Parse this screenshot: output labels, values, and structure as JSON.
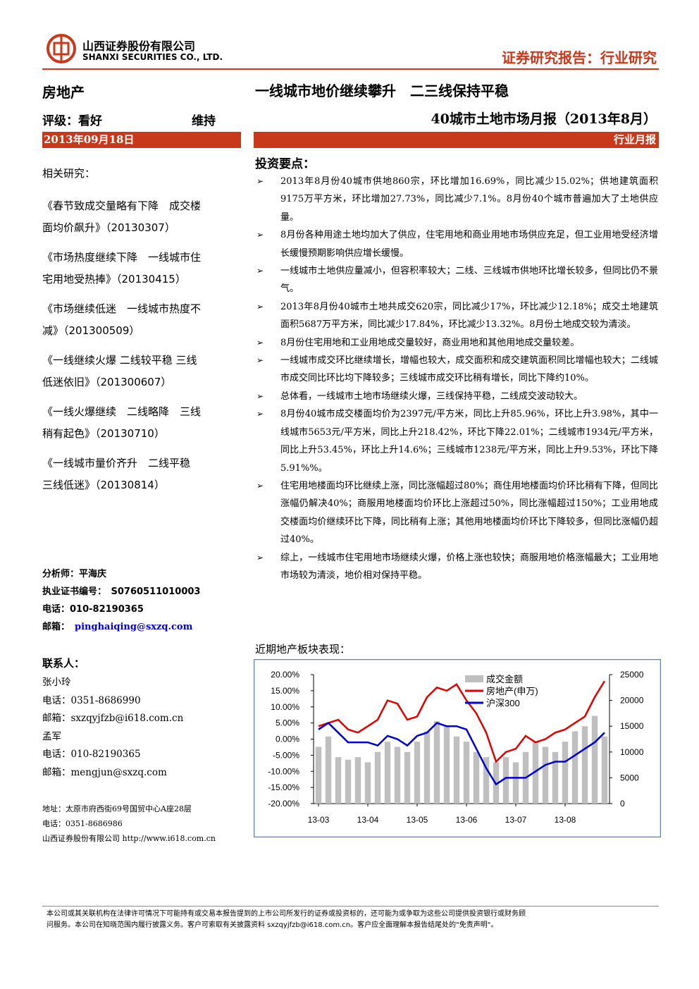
{
  "header": {
    "company_cn": "山西证券股份有限公司",
    "company_en": "SHANXI SECURITIES CO., LTD.",
    "report_type": "证券研究报告：行业研究"
  },
  "summary": {
    "sector": "房地产",
    "rating": "评级：看好",
    "rating_change": "维持",
    "date": "2013年09月18日",
    "title": "一线城市地价继续攀升　二三线保持平稳",
    "subtitle": "40城市土地市场月报（2013年8月）",
    "tag": "行业月报"
  },
  "sidebar": {
    "related_title": "相关研究：",
    "related": [
      [
        "《春节致成交量略有下降　成交楼",
        "面均价飙升》（20130307）"
      ],
      [
        "《市场热度继续下降　一线城市住",
        "宅用地受热捧》（20130415）"
      ],
      [
        "《市场继续低迷　一线城市热度不",
        "减》（201300509）"
      ],
      [
        "《一线继续火爆 二线较平稳 三线",
        "低迷依旧》（201300607）"
      ],
      [
        "《一线火爆继续　二线略降　三线",
        "稍有起色》（20130710）"
      ],
      [
        "《一线城市量价齐升　二线平稳",
        "三线低迷》（20130814）"
      ]
    ],
    "analyst": [
      "分析师：平海庆",
      "执业证书编号：　S0760511010003",
      "电话：010-82190365",
      "邮箱："
    ],
    "analyst_email": "pinghaiqing@sxzq.com",
    "contacts_title": "联系人：",
    "contacts": [
      "张小玲",
      "电话：0351-8686990",
      "邮箱：sxzqyjfzb@i618.com.cn",
      "孟军",
      "电话：010-82190365",
      "邮箱：mengjun@sxzq.com"
    ],
    "address": [
      "地址：太原市府西街69号国贸中心A座28层",
      "电话：0351-8686986",
      "山西证券股份有限公司 http://www.i618.com.cn"
    ]
  },
  "main": {
    "points_title": "投资要点：",
    "points": [
      "2013年8月份40城市供地860宗，环比增加16.69%，同比减少15.02%；供地建筑面积9175万平方米，环比增加27.73%，同比减少7.1%。8月份40个城市普遍加大了土地供应量。",
      "8月份各种用途土地均加大了供应，住宅用地和商业用地市场供应充足，但工业用地受经济增长缓慢预期影响供应增长缓慢。",
      "一线城市土地供应量减小，但容积率较大；二线、三线城市供地环比增长较多，但同比仍不景气。",
      "2013年8月份40城市土地共成交620宗，同比减少17%，环比减少12.18%；成交土地建筑面积5687万平方米，同比减少17.84%，环比减少13.32%。8月份土地成交较为清淡。",
      "8月份住宅用地和工业用地成交量较好，商业用地和其他用地成交量较差。",
      "一线城市成交环比继续增长，增幅也较大，成交面积和成交建筑面积同比增幅也较大；二线城市成交同比环比均下降较多；三线城市成交环比稍有增长，同比下降约10%。",
      "总体看，一线城市土地市场继续火爆，三线保持平稳，二线成交波动较大。",
      "8月份40城市成交楼面均价为2397元/平方米，同比上升85.96%，环比上升3.98%，其中一线城市5653元/平方米，同比上升218.42%，环比下降22.01%；二线城市1934元/平方米，同比上升53.45%，环比上升14.6%；三线城市1238元/平方米，同比上升9.53%，环比下降5.91%%。",
      "住宅用地楼面均环比继续上涨，同比涨幅超过80%；商住用地楼面均价环比稍有下降，但同比涨幅仍解决40%；商服用地楼面均价环比上涨超过50%，同比涨幅超过150%；工业用地成交楼面均价继续环比下降，同比稍有上涨；其他用地楼面均价环比下降较多，但同比涨幅仍超过40%。",
      "综上，一线城市住宅用地市场继续火爆，价格上涨也较快；商服用地价格涨幅最大；工业用地市场较为清淡，地价相对保持平稳。"
    ],
    "chart_title": "近期地产板块表现："
  },
  "chart_data": {
    "type": "bar-line",
    "categories": [
      "13-03",
      null,
      null,
      null,
      null,
      "13-04",
      null,
      null,
      null,
      null,
      "13-05",
      null,
      null,
      null,
      null,
      "13-06",
      null,
      null,
      null,
      null,
      "13-07",
      null,
      null,
      null,
      null,
      "13-08",
      null,
      null,
      null,
      null
    ],
    "series": [
      {
        "name": "成交金额",
        "type": "bar",
        "axis": "y2",
        "color": "#bfbfbf",
        "values": [
          11000,
          13000,
          9000,
          8500,
          9000,
          8000,
          10000,
          12000,
          11000,
          10000,
          12000,
          14000,
          16000,
          15000,
          13000,
          12000,
          10000,
          9000,
          8000,
          9000,
          8000,
          10000,
          12000,
          11000,
          10000,
          12000,
          14000,
          15000,
          17000,
          13000
        ]
      },
      {
        "name": "房地产(申万)",
        "type": "line",
        "color": "#e00000",
        "values": [
          4,
          5,
          6,
          3,
          2,
          4,
          6,
          12,
          11,
          6,
          7,
          13,
          16,
          15,
          17,
          12,
          8,
          2,
          -7,
          -4,
          -3,
          1,
          -1,
          0,
          2,
          3,
          5,
          7,
          13,
          18
        ]
      },
      {
        "name": "沪深300",
        "type": "line",
        "color": "#0000cc",
        "values": [
          3,
          5,
          2,
          -1,
          -1,
          -1,
          -2,
          1,
          0,
          -2,
          1,
          2,
          5,
          4,
          4,
          3,
          -3,
          -9,
          -14,
          -12,
          -12,
          -12,
          -10,
          -8,
          -7,
          -7,
          -5,
          -3,
          -1,
          2
        ]
      }
    ],
    "ylim": [
      -20,
      20
    ],
    "yticks": [
      {
        "value": -20,
        "label": "-20.00%"
      },
      {
        "value": -15,
        "label": "-15.00%"
      },
      {
        "value": -10,
        "label": "-10.00%"
      },
      {
        "value": -5,
        "label": "-5.00%"
      },
      {
        "value": 0,
        "label": "0.00%"
      },
      {
        "value": 5,
        "label": "5.00%"
      },
      {
        "value": 10,
        "label": "10.00%"
      },
      {
        "value": 15,
        "label": "15.00%"
      },
      {
        "value": 20,
        "label": "20.00%"
      }
    ],
    "y2lim": [
      0,
      25000
    ],
    "y2ticks": [
      0,
      5000,
      10000,
      15000,
      20000,
      25000
    ],
    "legend": "upper-center"
  },
  "footer": {
    "disclaimer": [
      "本公司或其关联机构在法律许可情况下可能持有或交易本报告提到的上市公司所发行的证券或投资标的，还可能为或争取为这些公司提供投资银行或财务顾",
      "问服务。本公司在知晓范围内履行披露义务。客户可索取有关披露资料 sxzqyjfzb@i618.com.cn。客户应全面理解本报告结尾处的\"免责声明\"。"
    ]
  }
}
